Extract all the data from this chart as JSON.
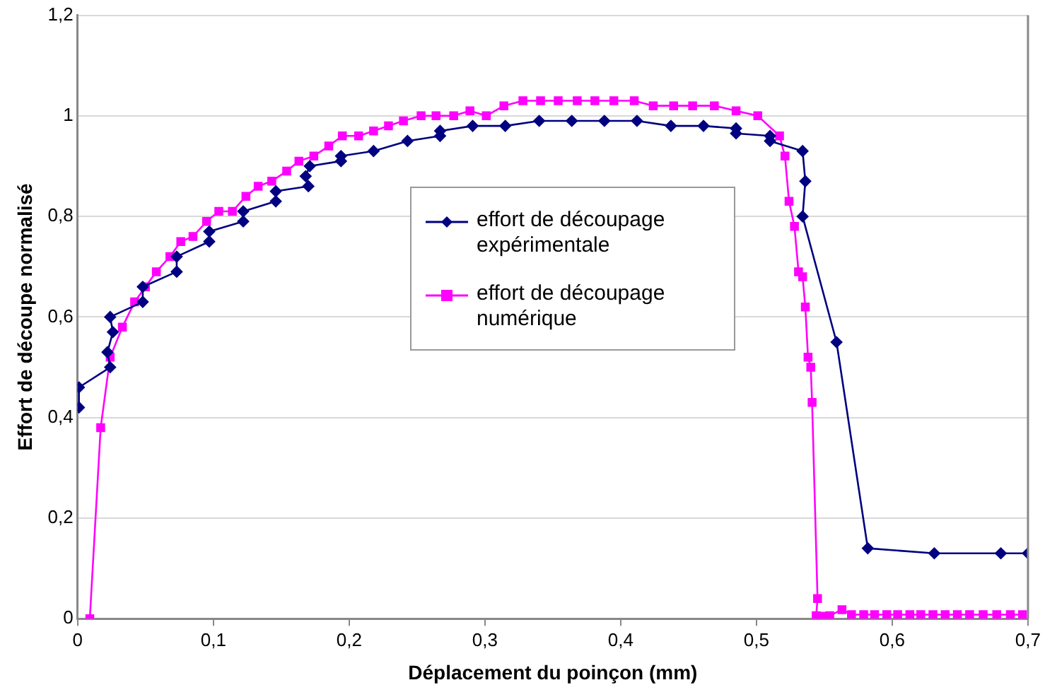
{
  "chart_data": {
    "type": "line",
    "xlabel": "Déplacement du poinçon (mm)",
    "ylabel": "Effort de découpe normalisé",
    "xlim": [
      0,
      0.7
    ],
    "xticks": [
      0,
      {
        "value": 0.1,
        "label": "0,1"
      },
      {
        "value": 0.2,
        "label": "0,2"
      },
      {
        "value": 0.3,
        "label": "0,3"
      },
      {
        "value": 0.4,
        "label": "0,4"
      },
      {
        "value": 0.5,
        "label": "0,5"
      },
      {
        "value": 0.6,
        "label": "0,6"
      },
      {
        "value": 0.7,
        "label": "0,7"
      }
    ],
    "ylim": [
      0,
      1.2
    ],
    "yticks": [
      0,
      {
        "value": 0.2,
        "label": "0,2"
      },
      {
        "value": 0.4,
        "label": "0,4"
      },
      {
        "value": 0.6,
        "label": "0,6"
      },
      {
        "value": 0.8,
        "label": "0,8"
      },
      1,
      {
        "value": 1.2,
        "label": "1,2"
      }
    ],
    "grid": "y",
    "legend": "center",
    "series": [
      {
        "name": "effort de découpage expérimentale",
        "color": "#000080",
        "marker": "diamond",
        "x": [
          0.001,
          0.001,
          0.024,
          0.022,
          0.026,
          0.024,
          0.048,
          0.048,
          0.073,
          0.073,
          0.097,
          0.097,
          0.122,
          0.122,
          0.146,
          0.146,
          0.17,
          0.168,
          0.171,
          0.194,
          0.194,
          0.218,
          0.243,
          0.267,
          0.267,
          0.291,
          0.315,
          0.34,
          0.364,
          0.388,
          0.412,
          0.437,
          0.461,
          0.485,
          0.485,
          0.51,
          0.51,
          0.534,
          0.536,
          0.534,
          0.559,
          0.582,
          0.631,
          0.68,
          0.7
        ],
        "values": [
          0.42,
          0.46,
          0.5,
          0.53,
          0.57,
          0.6,
          0.63,
          0.66,
          0.69,
          0.72,
          0.75,
          0.77,
          0.79,
          0.81,
          0.83,
          0.85,
          0.86,
          0.88,
          0.9,
          0.91,
          0.92,
          0.93,
          0.95,
          0.96,
          0.97,
          0.98,
          0.98,
          0.99,
          0.99,
          0.99,
          0.99,
          0.98,
          0.98,
          0.975,
          0.965,
          0.96,
          0.95,
          0.93,
          0.87,
          0.8,
          0.55,
          0.14,
          0.13,
          0.13,
          0.13
        ]
      },
      {
        "name": "effort de découpage numérique",
        "color": "#ff00ff",
        "marker": "square",
        "x": [
          0.009,
          0.017,
          0.024,
          0.033,
          0.042,
          0.05,
          0.058,
          0.068,
          0.076,
          0.085,
          0.095,
          0.104,
          0.114,
          0.124,
          0.133,
          0.143,
          0.154,
          0.163,
          0.174,
          0.185,
          0.195,
          0.207,
          0.218,
          0.229,
          0.24,
          0.253,
          0.264,
          0.277,
          0.289,
          0.301,
          0.314,
          0.328,
          0.341,
          0.354,
          0.368,
          0.381,
          0.395,
          0.41,
          0.424,
          0.439,
          0.453,
          0.469,
          0.485,
          0.501,
          0.517,
          0.521,
          0.524,
          0.528,
          0.531,
          0.534,
          0.536,
          0.538,
          0.54,
          0.541,
          0.545,
          0.544,
          0.548,
          0.554,
          0.563,
          0.57,
          0.579,
          0.587,
          0.596,
          0.604,
          0.613,
          0.621,
          0.63,
          0.639,
          0.648,
          0.657,
          0.667,
          0.677,
          0.687,
          0.696
        ],
        "values": [
          0,
          0.38,
          0.52,
          0.58,
          0.63,
          0.66,
          0.69,
          0.72,
          0.75,
          0.76,
          0.79,
          0.81,
          0.81,
          0.84,
          0.86,
          0.87,
          0.89,
          0.91,
          0.92,
          0.94,
          0.96,
          0.96,
          0.97,
          0.98,
          0.99,
          1,
          1,
          1,
          1.01,
          1,
          1.02,
          1.03,
          1.03,
          1.03,
          1.03,
          1.03,
          1.03,
          1.03,
          1.02,
          1.02,
          1.02,
          1.02,
          1.01,
          1,
          0.96,
          0.92,
          0.83,
          0.78,
          0.69,
          0.68,
          0.62,
          0.52,
          0.5,
          0.43,
          0.04,
          0.006,
          0.005,
          0.006,
          0.018,
          0.008,
          0.008,
          0.008,
          0.008,
          0.008,
          0.008,
          0.008,
          0.008,
          0.008,
          0.008,
          0.008,
          0.008,
          0.008,
          0.008,
          0.008
        ]
      }
    ]
  }
}
